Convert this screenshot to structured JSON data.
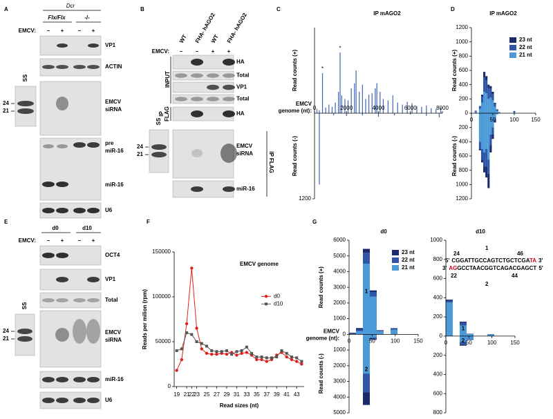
{
  "panels": {
    "letters": [
      "A",
      "B",
      "C",
      "D",
      "E",
      "F",
      "G"
    ],
    "A": {
      "gene": "Dcr",
      "genotypes": [
        "Flx/Flx",
        "-/-"
      ],
      "treatment": "EMCV:",
      "signs": [
        "–",
        "+",
        "–",
        "+"
      ],
      "ss": "SS",
      "sizes": [
        "24",
        "21"
      ],
      "blots": [
        "VP1",
        "ACTIN",
        [
          "EMCV",
          "siRNA"
        ],
        [
          "pre",
          "miR-16"
        ],
        "miR-16",
        "U6"
      ]
    },
    "B": {
      "lanes": [
        "WT",
        "FHA- hAGO2",
        "WT",
        "FHA- hAGO2"
      ],
      "treatment": "EMCV:",
      "signs": [
        "–",
        "–",
        "+",
        "+"
      ],
      "blots": [
        "HA",
        "Total",
        "VP1",
        "Total",
        "HA"
      ],
      "groups": [
        "INPUT",
        [
          "IP",
          "FLAG"
        ]
      ],
      "ss": "SS",
      "sizes": [
        "24",
        "21"
      ],
      "lower_blots": [
        [
          "EMCV",
          "siRNA"
        ],
        "miR-16"
      ],
      "lower_group": "IP FLAG"
    },
    "E": {
      "days": [
        "d0",
        "d10"
      ],
      "treatment": "EMCV:",
      "signs": [
        "–",
        "+",
        "–",
        "+"
      ],
      "blots": [
        "OCT4",
        "VP1",
        "Total"
      ],
      "ss": "SS",
      "sizes": [
        "24",
        "21"
      ],
      "lower_blots": [
        [
          "EMCV",
          "siRNA"
        ],
        "miR-16",
        "U6"
      ]
    }
  },
  "chart_data": [
    {
      "type": "bar",
      "title": "IP mAGO2",
      "ylabel_plus": "Read counts (+)",
      "ylabel_minus": "Read counts (-)",
      "xlabel": [
        "EMCV",
        "genome (nt):"
      ],
      "xlim": [
        0,
        8000
      ],
      "xticks": [
        0,
        2000,
        4000,
        6000,
        8000
      ],
      "ylim": [
        -1200,
        1200
      ],
      "yticks": [
        {
          "value": -1200,
          "label": "1200"
        }
      ],
      "annotations": [
        "*",
        "*"
      ],
      "series": [
        {
          "color": "#3e64b5",
          "x": [
            150,
            300,
            500,
            700,
            900,
            1100,
            1300,
            1500,
            1600,
            1700,
            1900,
            2100,
            2300,
            2500,
            2600,
            2800,
            3000,
            3200,
            3400,
            3600,
            3800,
            3900,
            4100,
            4300,
            4600,
            4900,
            5200,
            5500,
            5800,
            6100,
            6400,
            6700,
            7000,
            7300,
            7600,
            7900
          ],
          "values": [
            60,
            40,
            560,
            80,
            120,
            90,
            150,
            300,
            850,
            250,
            200,
            180,
            350,
            420,
            600,
            300,
            400,
            200,
            260,
            280,
            350,
            420,
            300,
            200,
            180,
            250,
            150,
            120,
            160,
            140,
            100,
            90,
            110,
            70,
            60,
            80
          ]
        },
        {
          "color": "#3e64b5",
          "x": [
            300,
            1200,
            2000,
            3000,
            4000,
            5000,
            6000,
            7000,
            7800
          ],
          "values": [
            -1000,
            -30,
            -40,
            -30,
            -50,
            -30,
            -20,
            -40,
            -60
          ]
        }
      ]
    },
    {
      "type": "stacked_bar",
      "title": "IP mAGO2",
      "ylabel_plus": "Read counts (+)",
      "ylabel_minus": "Read counts (-)",
      "xlim": [
        0,
        150
      ],
      "xticks": [
        0,
        50,
        100,
        150
      ],
      "ylim": [
        -1200,
        1200
      ],
      "yticks": [
        0,
        200,
        400,
        600,
        800,
        1000,
        1200,
        {
          "value": -200,
          "label": "200"
        },
        {
          "value": -400,
          "label": "400"
        },
        {
          "value": -600,
          "label": "600"
        },
        {
          "value": -800,
          "label": "800"
        },
        {
          "value": -1000,
          "label": "1000"
        },
        {
          "value": -1200,
          "label": "1200"
        }
      ],
      "legend": "upper right",
      "x": [
        10,
        20,
        25,
        30,
        35,
        40,
        45,
        50,
        55,
        60,
        65,
        100
      ],
      "series": [
        {
          "name": "23 nt",
          "color": "#1b2a6b",
          "values": [
            5,
            10,
            30,
            80,
            60,
            50,
            40,
            30,
            15,
            5,
            0,
            5
          ],
          "values_minus": [
            0,
            -20,
            -40,
            -80,
            -150,
            -200,
            -100,
            -60,
            -20,
            0,
            0,
            0
          ]
        },
        {
          "name": "22 nt",
          "color": "#2e55a8",
          "values": [
            10,
            30,
            80,
            200,
            180,
            150,
            120,
            90,
            40,
            20,
            5,
            10
          ],
          "values_minus": [
            -5,
            -100,
            -150,
            -200,
            -250,
            -200,
            -150,
            -100,
            -30,
            -5,
            0,
            0
          ]
        },
        {
          "name": "21 nt",
          "color": "#4c9ad8",
          "values": [
            20,
            60,
            150,
            300,
            280,
            200,
            220,
            180,
            90,
            30,
            10,
            15
          ],
          "values_minus": [
            0,
            -400,
            -500,
            -550,
            -500,
            -650,
            -300,
            -200,
            -80,
            -10,
            0,
            -5
          ]
        }
      ]
    },
    {
      "type": "line",
      "title": "EMCV genome",
      "xlabel": "Read sizes (nt)",
      "ylabel": "Reads per milion (rpm)",
      "x": [
        19,
        20,
        21,
        22,
        23,
        24,
        25,
        26,
        27,
        28,
        29,
        30,
        31,
        32,
        33,
        34,
        35,
        36,
        37,
        38,
        39,
        40,
        41,
        42,
        43,
        44
      ],
      "xlim": [
        18.5,
        44.5
      ],
      "xticks": [
        19,
        21,
        22,
        23,
        25,
        27,
        29,
        31,
        33,
        35,
        37,
        39,
        41,
        43
      ],
      "xtick_colors": [
        "#000000",
        "#2f5fb3",
        "#2f5fb3",
        "#2f5fb3",
        "#000000",
        "#000000",
        "#000000",
        "#000000",
        "#000000",
        "#000000",
        "#000000",
        "#000000",
        "#000000",
        "#000000"
      ],
      "ylim": [
        0,
        150000
      ],
      "yticks": [
        0,
        50000,
        100000,
        150000
      ],
      "legend": "center right",
      "series": [
        {
          "name": "d0",
          "color": "#e02020",
          "marker": "circle",
          "values": [
            18000,
            30000,
            70000,
            132000,
            65000,
            42000,
            37000,
            36000,
            36000,
            37000,
            36000,
            38000,
            35000,
            37000,
            38000,
            35000,
            30000,
            30000,
            28000,
            30000,
            35000,
            38000,
            33000,
            30000,
            28000,
            25000
          ]
        },
        {
          "name": "d10",
          "color": "#555555",
          "marker": "square",
          "values": [
            40000,
            42000,
            60000,
            58000,
            50000,
            48000,
            45000,
            40000,
            39000,
            39000,
            40000,
            36000,
            39000,
            40000,
            44000,
            37000,
            33000,
            33000,
            32000,
            32000,
            33000,
            40000,
            37000,
            33000,
            32000,
            28000
          ]
        }
      ]
    },
    {
      "type": "stacked_bar",
      "title": "d0",
      "ylabel_plus": "Read counts (+)",
      "ylabel_minus": "Read counts (-)",
      "xlabel": [
        "EMCV",
        "genome (nt):"
      ],
      "xlim": [
        0,
        150
      ],
      "xticks": [
        0,
        50,
        100,
        150
      ],
      "ylim": [
        -5000,
        6000
      ],
      "yticks": [
        0,
        1000,
        2000,
        3000,
        4000,
        5000,
        6000,
        {
          "value": -1000,
          "label": "1000"
        },
        {
          "value": -2000,
          "label": "2000"
        },
        {
          "value": -3000,
          "label": "3000"
        },
        {
          "value": -4000,
          "label": "4000"
        },
        {
          "value": -5000,
          "label": "5000"
        }
      ],
      "limit_tick_color": "#d0021b",
      "legend": "upper right",
      "annotations": [
        "1",
        "2"
      ],
      "x": [
        7.5,
        22.5,
        37.5,
        52.5,
        67.5,
        82.5,
        97.5,
        112.5,
        127.5,
        142.5
      ],
      "series": [
        {
          "name": "23 nt",
          "color": "#1b2a6b",
          "values": [
            50,
            100,
            250,
            100,
            20,
            0,
            20,
            0,
            0,
            0
          ],
          "values_minus": [
            0,
            0,
            -800,
            -50,
            0,
            0,
            0,
            0,
            0,
            0
          ]
        },
        {
          "name": "22 nt",
          "color": "#2e55a8",
          "values": [
            50,
            100,
            700,
            300,
            50,
            0,
            80,
            0,
            0,
            0
          ],
          "values_minus": [
            0,
            0,
            -1200,
            -100,
            0,
            0,
            0,
            0,
            0,
            0
          ]
        },
        {
          "name": "21 nt",
          "color": "#4c9ad8",
          "values": [
            0,
            200,
            4500,
            2400,
            200,
            0,
            300,
            0,
            0,
            0
          ],
          "values_minus": [
            0,
            0,
            -2500,
            -200,
            0,
            0,
            0,
            0,
            0,
            0
          ]
        }
      ]
    },
    {
      "type": "stacked_bar",
      "title": "d10",
      "xlim": [
        0,
        150
      ],
      "xticks": [
        0,
        50,
        100,
        150
      ],
      "ylim": [
        -800,
        1000
      ],
      "yticks": [
        0,
        200,
        400,
        600,
        800,
        1000,
        {
          "value": -200,
          "label": "200"
        },
        {
          "value": -400,
          "label": "400"
        },
        {
          "value": -600,
          "label": "600"
        },
        {
          "value": -800,
          "label": "800"
        }
      ],
      "limit_tick_color": "#d0021b",
      "annotations": [
        "1",
        "2"
      ],
      "x": [
        7.5,
        22.5,
        37.5,
        52.5,
        67.5,
        82.5,
        97.5,
        112.5,
        127.5,
        142.5
      ],
      "series": [
        {
          "color": "#1b2a6b",
          "values": [
            10,
            0,
            10,
            0,
            0,
            0,
            0,
            0,
            0,
            0
          ],
          "values_minus": [
            0,
            0,
            -10,
            0,
            0,
            0,
            0,
            0,
            0,
            0
          ]
        },
        {
          "color": "#2e55a8",
          "values": [
            20,
            0,
            30,
            5,
            0,
            0,
            5,
            0,
            0,
            0
          ],
          "values_minus": [
            0,
            0,
            -30,
            -10,
            0,
            0,
            0,
            0,
            0,
            0
          ]
        },
        {
          "color": "#4c9ad8",
          "values": [
            350,
            0,
            110,
            20,
            0,
            0,
            15,
            0,
            0,
            0
          ],
          "values_minus": [
            0,
            0,
            -60,
            -30,
            0,
            0,
            0,
            0,
            0,
            0
          ]
        }
      ],
      "duplex": {
        "overhang_color": "#d0021b",
        "strand_color": "#2e55a8",
        "top": {
          "start": "24",
          "strand": "1",
          "end": "46",
          "prime5": "5'",
          "seq": "CGGATTGCCAGTCTGCTCGA",
          "overhang": "TA",
          "prime3": "3'"
        },
        "bottom": {
          "start": "22",
          "strand": "2",
          "end": "44",
          "prime3": "3'",
          "overhang": "AG",
          "seq": "GCCTAACGGTCAGACGAGCT",
          "prime5": "5'"
        }
      }
    }
  ]
}
